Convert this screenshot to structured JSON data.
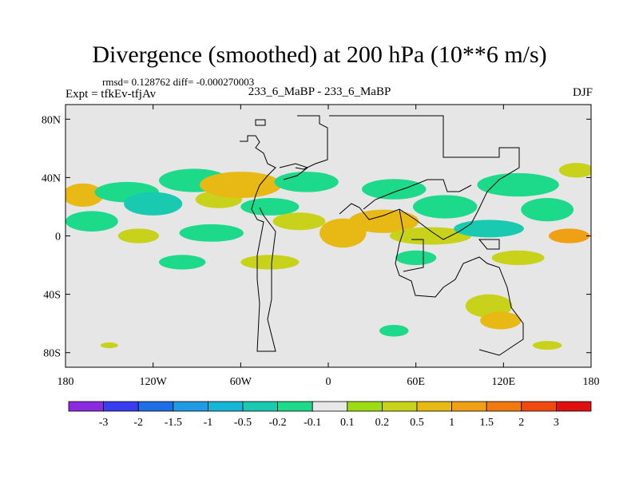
{
  "header": {
    "title": "Divergence (smoothed) at 200 hPa (10**6 m/s)",
    "stats": "rmsd= 0.128762 diff= -0.000270003",
    "expt": "Expt = tfkEv-tfjAv",
    "plot_title": "233_6_MaBP - 233_6_MaBP",
    "season": "DJF"
  },
  "chart_data": {
    "type": "heatmap",
    "title": "Divergence (smoothed) at 200 hPa (10**6 m/s)",
    "x_ticks": [
      {
        "value": -180,
        "label": "180"
      },
      {
        "value": -120,
        "label": "120W"
      },
      {
        "value": -60,
        "label": "60W"
      },
      {
        "value": 0,
        "label": "0"
      },
      {
        "value": 60,
        "label": "60E"
      },
      {
        "value": 120,
        "label": "120E"
      },
      {
        "value": 180,
        "label": "180"
      }
    ],
    "y_ticks": [
      {
        "value": 80,
        "label": "80N"
      },
      {
        "value": 40,
        "label": "40N"
      },
      {
        "value": 0,
        "label": "0"
      },
      {
        "value": -40,
        "label": "40S"
      },
      {
        "value": -80,
        "label": "80S"
      }
    ],
    "xlim": [
      -180,
      180
    ],
    "ylim": [
      -90,
      90
    ],
    "background_color": "#e6e6e6",
    "colorbar": {
      "levels": [
        "-3",
        "-2",
        "-1.5",
        "-1",
        "-0.5",
        "-0.2",
        "-0.1",
        "0.1",
        "0.2",
        "0.5",
        "1",
        "1.5",
        "2",
        "3"
      ],
      "colors": [
        "#8a2be2",
        "#3a3cf0",
        "#1e6ee6",
        "#1f9be6",
        "#16b6d8",
        "#19c9b0",
        "#1dd98a",
        "#e8e8e8",
        "#9ddc14",
        "#c8d21a",
        "#e8b814",
        "#f0a014",
        "#f07a10",
        "#f04a10",
        "#e01010"
      ]
    },
    "regions": [
      {
        "lon": -168,
        "lat": 28,
        "rx": 14,
        "ry": 8,
        "level": 0.5
      },
      {
        "lon": -162,
        "lat": 10,
        "rx": 18,
        "ry": 7,
        "level": -0.2
      },
      {
        "lon": -138,
        "lat": 30,
        "rx": 22,
        "ry": 7,
        "level": -0.2
      },
      {
        "lon": -120,
        "lat": 22,
        "rx": 20,
        "ry": 8,
        "level": -0.5
      },
      {
        "lon": -92,
        "lat": 38,
        "rx": 24,
        "ry": 8,
        "level": -0.2
      },
      {
        "lon": -75,
        "lat": 25,
        "rx": 16,
        "ry": 6,
        "level": 0.2
      },
      {
        "lon": -130,
        "lat": 0,
        "rx": 14,
        "ry": 5,
        "level": 0.2
      },
      {
        "lon": -80,
        "lat": 2,
        "rx": 22,
        "ry": 6,
        "level": -0.2
      },
      {
        "lon": -100,
        "lat": -18,
        "rx": 16,
        "ry": 5,
        "level": -0.2
      },
      {
        "lon": -60,
        "lat": 35,
        "rx": 28,
        "ry": 9,
        "level": 0.5
      },
      {
        "lon": -40,
        "lat": 20,
        "rx": 20,
        "ry": 6,
        "level": -0.2
      },
      {
        "lon": -15,
        "lat": 37,
        "rx": 22,
        "ry": 7,
        "level": -0.2
      },
      {
        "lon": -20,
        "lat": 10,
        "rx": 18,
        "ry": 6,
        "level": 0.2
      },
      {
        "lon": 10,
        "lat": 2,
        "rx": 16,
        "ry": 10,
        "level": 0.5
      },
      {
        "lon": 38,
        "lat": 10,
        "rx": 24,
        "ry": 8,
        "level": 0.5
      },
      {
        "lon": 45,
        "lat": 32,
        "rx": 22,
        "ry": 7,
        "level": -0.2
      },
      {
        "lon": 80,
        "lat": 20,
        "rx": 22,
        "ry": 8,
        "level": -0.2
      },
      {
        "lon": 70,
        "lat": 0,
        "rx": 28,
        "ry": 6,
        "level": 0.2
      },
      {
        "lon": 110,
        "lat": 5,
        "rx": 24,
        "ry": 6,
        "level": -0.5
      },
      {
        "lon": 130,
        "lat": 35,
        "rx": 28,
        "ry": 8,
        "level": -0.2
      },
      {
        "lon": 150,
        "lat": 18,
        "rx": 18,
        "ry": 8,
        "level": -0.2
      },
      {
        "lon": 165,
        "lat": 0,
        "rx": 14,
        "ry": 5,
        "level": 1
      },
      {
        "lon": 170,
        "lat": 45,
        "rx": 12,
        "ry": 5,
        "level": 0.2
      },
      {
        "lon": -40,
        "lat": -18,
        "rx": 20,
        "ry": 5,
        "level": 0.2
      },
      {
        "lon": 60,
        "lat": -15,
        "rx": 14,
        "ry": 5,
        "level": -0.2
      },
      {
        "lon": 130,
        "lat": -15,
        "rx": 18,
        "ry": 5,
        "level": 0.2
      },
      {
        "lon": 110,
        "lat": -48,
        "rx": 16,
        "ry": 8,
        "level": 0.2
      },
      {
        "lon": 118,
        "lat": -58,
        "rx": 14,
        "ry": 6,
        "level": 0.5
      },
      {
        "lon": 45,
        "lat": -65,
        "rx": 10,
        "ry": 4,
        "level": -0.2
      },
      {
        "lon": -150,
        "lat": -75,
        "rx": 6,
        "ry": 2,
        "level": 0.2
      },
      {
        "lon": 150,
        "lat": -75,
        "rx": 10,
        "ry": 3,
        "level": 0.2
      }
    ]
  }
}
